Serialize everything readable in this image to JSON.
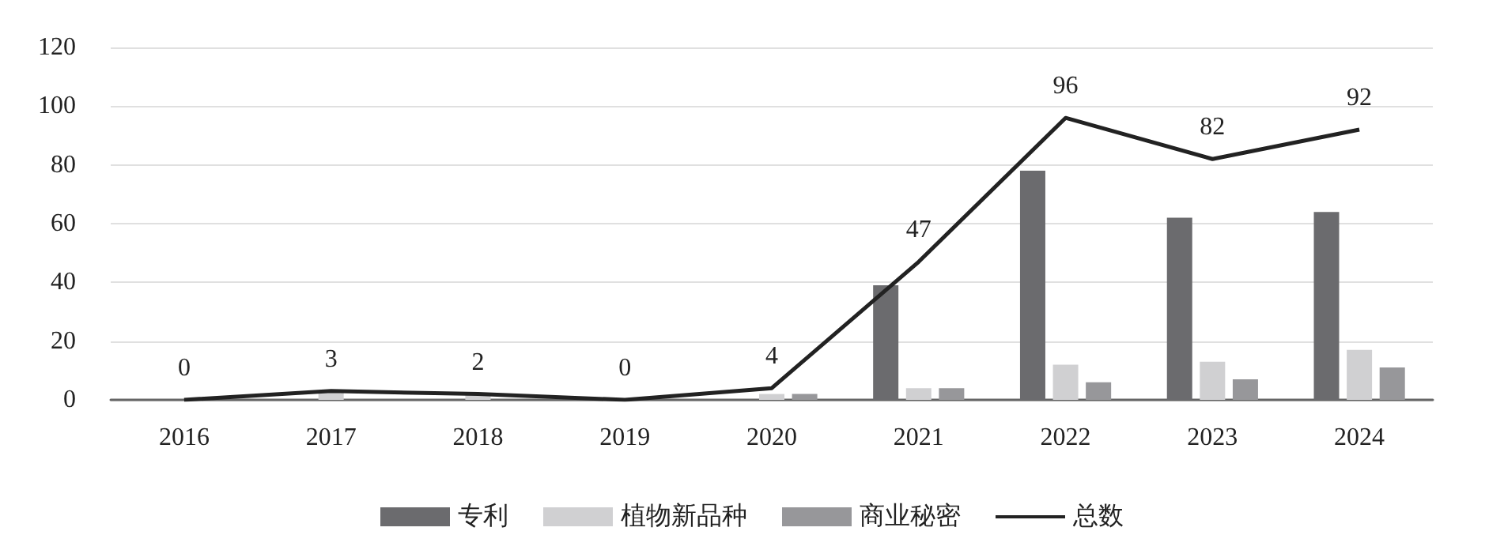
{
  "chart_data": {
    "type": "bar",
    "categories": [
      "2016",
      "2017",
      "2018",
      "2019",
      "2020",
      "2021",
      "2022",
      "2023",
      "2024"
    ],
    "series": [
      {
        "name": "专利",
        "color": "#6b6b6e",
        "values": [
          0,
          0,
          0,
          0,
          0,
          39,
          78,
          62,
          64
        ]
      },
      {
        "name": "植物新品种",
        "color": "#d0d0d2",
        "values": [
          0,
          3,
          2,
          0,
          2,
          4,
          12,
          13,
          17
        ]
      },
      {
        "name": "商业秘密",
        "color": "#97979a",
        "values": [
          0,
          0,
          0,
          0,
          2,
          4,
          6,
          7,
          11
        ]
      },
      {
        "name": "总数",
        "type": "line",
        "color": "#222222",
        "values": [
          0,
          3,
          2,
          0,
          4,
          47,
          96,
          82,
          92
        ],
        "data_labels": true
      }
    ],
    "ylim": [
      0,
      120
    ],
    "yticks": [
      0,
      20,
      40,
      60,
      80,
      100,
      120
    ],
    "grid": "y",
    "legend": "bottom",
    "marker": "none"
  }
}
